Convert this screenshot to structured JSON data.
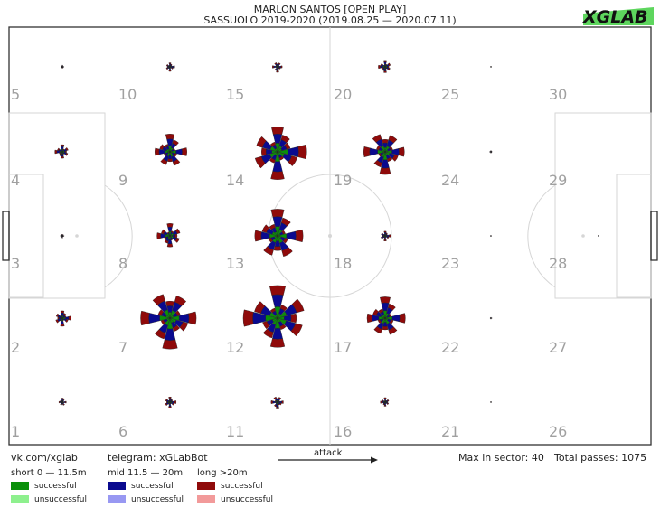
{
  "header": {
    "title_line1": "MARLON SANTOS [OPEN PLAY]",
    "title_line2": "SASSUOLO 2019-2020 (2019.08.25 — 2020.07.11)",
    "logo_text": "XGLAB"
  },
  "footer": {
    "vk": "vk.com/xglab",
    "telegram": "telegram: xGLabBot",
    "attack": "attack",
    "max_in_sector": "Max in sector: 40",
    "total_passes": "Total passes: 1075"
  },
  "legend": {
    "short_title": "short 0 — 11.5m",
    "mid_title": "mid 11.5 — 20m",
    "long_title": "long >20m",
    "successful": "successful",
    "unsuccessful": "unsuccessful"
  },
  "colors": {
    "short_successful": "#0a8f0a",
    "short_unsuccessful": "#8ef08e",
    "mid_successful": "#0a0a8f",
    "mid_unsuccessful": "#9898f2",
    "long_successful": "#8f0a0a",
    "long_unsuccessful": "#f29a9a",
    "pitch_line": "#d6d6d6",
    "sector_number": "#a0a0a0",
    "logo_green": "#5ed65e"
  },
  "chart_data": {
    "type": "radial-pass-map",
    "max_in_sector": 40,
    "total_passes": 1075,
    "sector_numbers": [
      1,
      2,
      3,
      4,
      5,
      6,
      7,
      8,
      9,
      10,
      11,
      12,
      13,
      14,
      15,
      16,
      17,
      18,
      19,
      20,
      21,
      22,
      23,
      24,
      25,
      26,
      27,
      28,
      29,
      30
    ],
    "sectors": [
      {
        "sector": 1,
        "scale": 0.12
      },
      {
        "sector": 2,
        "scale": 0.25
      },
      {
        "sector": 3,
        "scale": 0.06
      },
      {
        "sector": 4,
        "scale": 0.22
      },
      {
        "sector": 5,
        "scale": 0.05
      },
      {
        "sector": 6,
        "scale": 0.18
      },
      {
        "sector": 7,
        "scale": 0.9
      },
      {
        "sector": 8,
        "scale": 0.38
      },
      {
        "sector": 9,
        "scale": 0.52
      },
      {
        "sector": 10,
        "scale": 0.14
      },
      {
        "sector": 11,
        "scale": 0.2
      },
      {
        "sector": 12,
        "scale": 1.0
      },
      {
        "sector": 13,
        "scale": 0.78
      },
      {
        "sector": 14,
        "scale": 0.85
      },
      {
        "sector": 15,
        "scale": 0.16
      },
      {
        "sector": 16,
        "scale": 0.14
      },
      {
        "sector": 17,
        "scale": 0.62
      },
      {
        "sector": 18,
        "scale": 0.16
      },
      {
        "sector": 19,
        "scale": 0.66
      },
      {
        "sector": 20,
        "scale": 0.2
      },
      {
        "sector": 21,
        "scale": 0.02
      },
      {
        "sector": 22,
        "scale": 0.03
      },
      {
        "sector": 23,
        "scale": 0.02
      },
      {
        "sector": 24,
        "scale": 0.04
      },
      {
        "sector": 25,
        "scale": 0.02
      },
      {
        "sector": 26,
        "scale": 0
      },
      {
        "sector": 27,
        "scale": 0
      },
      {
        "sector": 28,
        "scale": 0.02
      },
      {
        "sector": 29,
        "scale": 0
      },
      {
        "sector": 30,
        "scale": 0
      }
    ]
  }
}
